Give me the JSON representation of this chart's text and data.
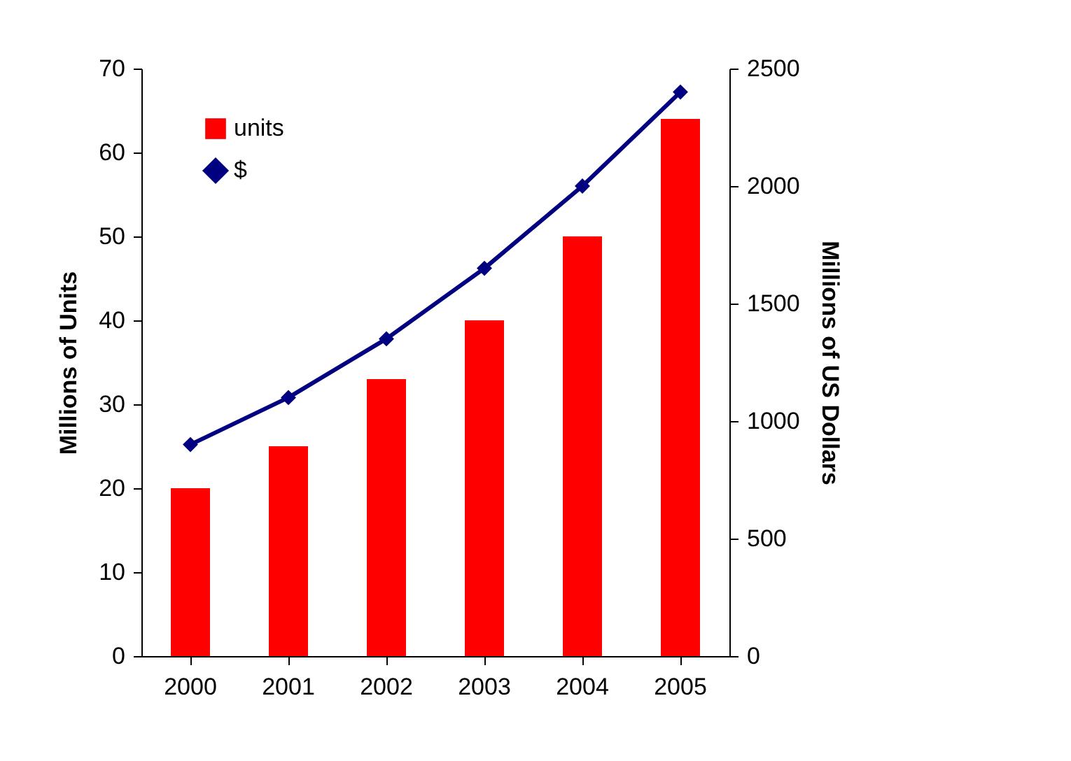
{
  "chart_data": {
    "type": "bar",
    "categories": [
      "2000",
      "2001",
      "2002",
      "2003",
      "2004",
      "2005"
    ],
    "ylabel": "Millions of Units",
    "y2label": "Millions of US Dollars",
    "ylim": [
      0,
      70
    ],
    "yticks": [
      0,
      10,
      20,
      30,
      40,
      50,
      60,
      70
    ],
    "y2lim": [
      0,
      2500
    ],
    "y2ticks": [
      0,
      500,
      1000,
      1500,
      2000,
      2500
    ],
    "grid": false,
    "legend": "top left",
    "marker": "diamond",
    "series": [
      {
        "name": "units",
        "color": "#ff0000",
        "values": [
          20,
          25,
          33,
          40,
          50,
          64
        ]
      },
      {
        "name": "$",
        "type": "line",
        "axis": "y2",
        "color": "#000080",
        "values": [
          900,
          1100,
          1350,
          1650,
          2000,
          2400
        ]
      }
    ]
  }
}
